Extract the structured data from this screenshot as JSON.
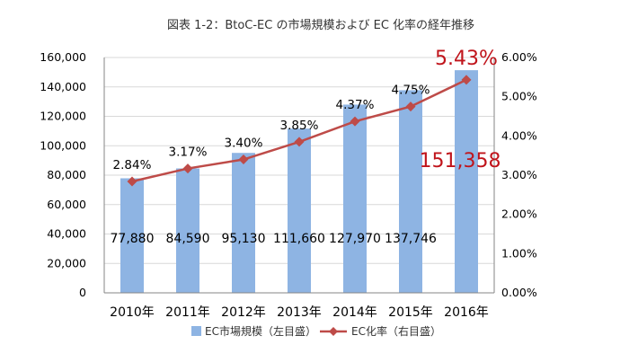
{
  "chart_data": {
    "type": "bar+line",
    "title": "図表 1-2：BtoC-EC の市場規模および EC 化率の経年推移",
    "categories": [
      "2010年",
      "2011年",
      "2012年",
      "2013年",
      "2014年",
      "2015年",
      "2016年"
    ],
    "series": [
      {
        "name": "EC市場規模（左目盛）",
        "type": "bar",
        "axis": "left",
        "color": "#8EB4E3",
        "values": [
          77880,
          84590,
          95130,
          111660,
          127970,
          137746,
          151358
        ],
        "labels": [
          "77,880",
          "84,590",
          "95,130",
          "111,660",
          "127,970",
          "137,746",
          "151,358"
        ]
      },
      {
        "name": "EC化率（右目盛）",
        "type": "line",
        "axis": "right",
        "color": "#BE4B48",
        "values": [
          2.84,
          3.17,
          3.4,
          3.85,
          4.37,
          4.75,
          5.43
        ],
        "labels": [
          "2.84%",
          "3.17%",
          "3.40%",
          "3.85%",
          "4.37%",
          "4.75%",
          "5.43%"
        ]
      }
    ],
    "left_axis": {
      "min": 0,
      "max": 160000,
      "step": 20000,
      "tick_labels": [
        "0",
        "20,000",
        "40,000",
        "60,000",
        "80,000",
        "100,000",
        "120,000",
        "140,000",
        "160,000"
      ]
    },
    "right_axis": {
      "min": 0,
      "max": 6,
      "step": 1,
      "tick_labels": [
        "0.00%",
        "1.00%",
        "2.00%",
        "3.00%",
        "4.00%",
        "5.00%",
        "6.00%"
      ]
    },
    "highlight_color": "#C0141B",
    "legend_position": "bottom"
  }
}
